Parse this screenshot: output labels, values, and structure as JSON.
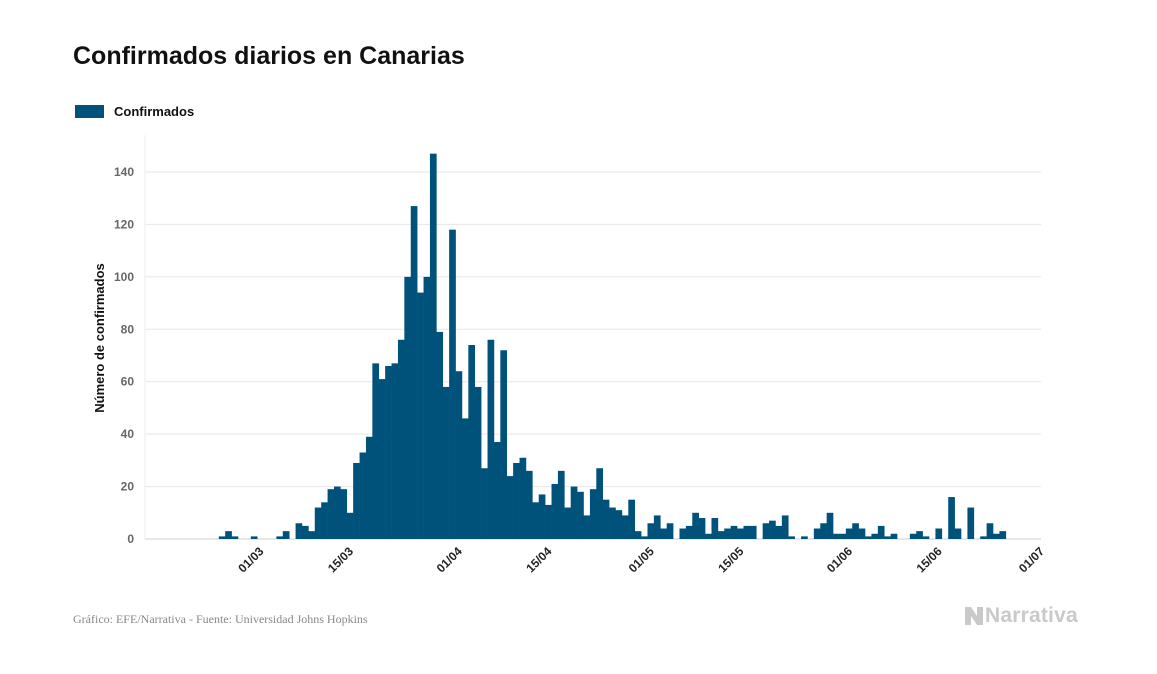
{
  "title": "Confirmados diarios en Canarias",
  "legend": {
    "label": "Confirmados",
    "color": "#00527a"
  },
  "footer": {
    "source": "Gráfico: EFE/Narrativa - Fuente: Universidad Johns Hopkins",
    "brand": "Narrativa"
  },
  "colors": {
    "bar": "#00527a",
    "grid": "#e6e6e6",
    "brand": "#c9c9c9"
  },
  "chart_data": {
    "type": "bar",
    "title": "Confirmados diarios en Canarias",
    "xlabel": "",
    "ylabel": "Número de confirmados",
    "ylim": [
      0,
      155
    ],
    "yticks": [
      0,
      20,
      40,
      60,
      80,
      100,
      120,
      140
    ],
    "xlim": [
      "2020-02-19",
      "2020-07-01"
    ],
    "xticks": [
      {
        "date": "2020-03-01",
        "label": "01/03"
      },
      {
        "date": "2020-03-15",
        "label": "15/03"
      },
      {
        "date": "2020-04-01",
        "label": "01/04"
      },
      {
        "date": "2020-04-15",
        "label": "15/04"
      },
      {
        "date": "2020-05-01",
        "label": "01/05"
      },
      {
        "date": "2020-05-15",
        "label": "15/05"
      },
      {
        "date": "2020-06-01",
        "label": "01/06"
      },
      {
        "date": "2020-06-15",
        "label": "15/06"
      },
      {
        "date": "2020-07-01",
        "label": "01/07"
      }
    ],
    "grid": true,
    "legend_position": "top-left",
    "series": [
      {
        "name": "Confirmados",
        "color": "#00527a",
        "x": [
          "2020-02-24",
          "2020-02-25",
          "2020-02-26",
          "2020-02-27",
          "2020-02-28",
          "2020-02-29",
          "2020-03-01",
          "2020-03-02",
          "2020-03-03",
          "2020-03-04",
          "2020-03-05",
          "2020-03-06",
          "2020-03-07",
          "2020-03-08",
          "2020-03-09",
          "2020-03-10",
          "2020-03-11",
          "2020-03-12",
          "2020-03-13",
          "2020-03-14",
          "2020-03-15",
          "2020-03-16",
          "2020-03-17",
          "2020-03-18",
          "2020-03-19",
          "2020-03-20",
          "2020-03-21",
          "2020-03-22",
          "2020-03-23",
          "2020-03-24",
          "2020-03-25",
          "2020-03-26",
          "2020-03-27",
          "2020-03-28",
          "2020-03-29",
          "2020-03-30",
          "2020-03-31",
          "2020-04-01",
          "2020-04-02",
          "2020-04-03",
          "2020-04-04",
          "2020-04-05",
          "2020-04-06",
          "2020-04-07",
          "2020-04-08",
          "2020-04-09",
          "2020-04-10",
          "2020-04-11",
          "2020-04-12",
          "2020-04-13",
          "2020-04-14",
          "2020-04-15",
          "2020-04-16",
          "2020-04-17",
          "2020-04-18",
          "2020-04-19",
          "2020-04-20",
          "2020-04-21",
          "2020-04-22",
          "2020-04-23",
          "2020-04-24",
          "2020-04-25",
          "2020-04-26",
          "2020-04-27",
          "2020-04-28",
          "2020-04-29",
          "2020-04-30",
          "2020-05-01",
          "2020-05-02",
          "2020-05-03",
          "2020-05-04",
          "2020-05-05",
          "2020-05-06",
          "2020-05-07",
          "2020-05-08",
          "2020-05-09",
          "2020-05-10",
          "2020-05-11",
          "2020-05-12",
          "2020-05-13",
          "2020-05-14",
          "2020-05-15",
          "2020-05-16",
          "2020-05-17",
          "2020-05-18",
          "2020-05-19",
          "2020-05-20",
          "2020-05-21",
          "2020-05-22",
          "2020-05-23",
          "2020-05-24",
          "2020-05-25",
          "2020-05-26",
          "2020-05-27",
          "2020-05-28",
          "2020-05-29",
          "2020-05-30",
          "2020-05-31",
          "2020-06-01",
          "2020-06-02",
          "2020-06-03",
          "2020-06-04",
          "2020-06-05",
          "2020-06-06",
          "2020-06-07",
          "2020-06-08",
          "2020-06-09",
          "2020-06-10",
          "2020-06-11",
          "2020-06-12",
          "2020-06-13",
          "2020-06-14",
          "2020-06-15",
          "2020-06-16",
          "2020-06-17",
          "2020-06-18",
          "2020-06-19",
          "2020-06-20",
          "2020-06-21",
          "2020-06-22",
          "2020-06-23",
          "2020-06-24",
          "2020-06-25",
          "2020-06-26"
        ],
        "values": [
          1,
          3,
          1,
          0,
          0,
          1,
          0,
          0,
          0,
          1,
          3,
          0,
          6,
          5,
          3,
          12,
          14,
          19,
          20,
          19,
          10,
          29,
          33,
          39,
          67,
          61,
          66,
          67,
          76,
          100,
          127,
          94,
          100,
          147,
          79,
          58,
          118,
          64,
          46,
          74,
          58,
          27,
          76,
          37,
          72,
          24,
          29,
          31,
          26,
          14,
          17,
          13,
          21,
          26,
          12,
          20,
          18,
          9,
          19,
          27,
          15,
          12,
          11,
          9,
          15,
          3,
          1,
          6,
          9,
          4,
          6,
          0,
          4,
          5,
          10,
          8,
          2,
          8,
          3,
          4,
          5,
          4,
          5,
          5,
          0,
          6,
          7,
          5,
          9,
          1,
          0,
          1,
          0,
          4,
          6,
          10,
          2,
          2,
          4,
          6,
          4,
          1,
          2,
          5,
          1,
          2,
          0,
          0,
          2,
          3,
          1,
          0,
          4,
          0,
          16,
          4,
          0,
          12,
          0,
          1,
          6,
          2,
          3,
          0
        ]
      }
    ]
  }
}
